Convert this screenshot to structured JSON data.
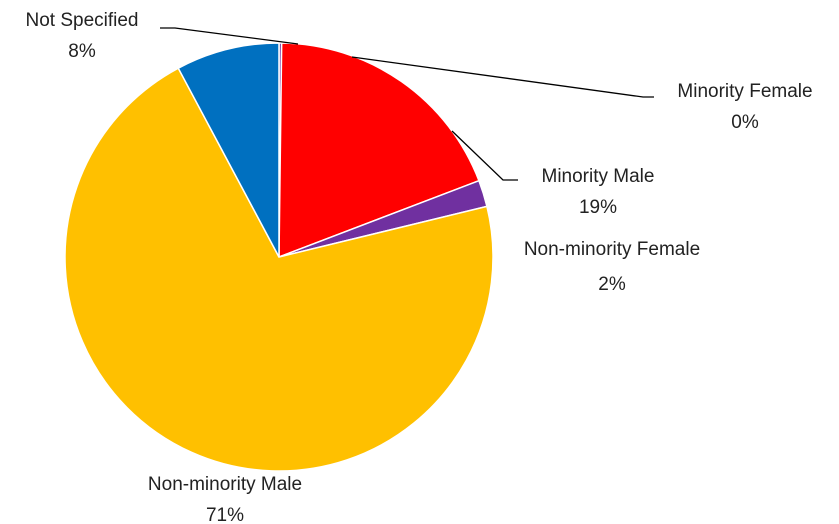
{
  "chart_data": {
    "type": "pie",
    "title": "",
    "start_angle_deg": 0,
    "direction": "clockwise",
    "slices": [
      {
        "label": "Minority Female",
        "value": 0.2,
        "pct_label": "0%",
        "color": "#7030A0"
      },
      {
        "label": "Minority Male",
        "value": 19,
        "pct_label": "19%",
        "color": "#FF0000"
      },
      {
        "label": "Non-minority Female",
        "value": 2,
        "pct_label": "2%",
        "color": "#7030A0"
      },
      {
        "label": "Non-minority Male",
        "value": 71,
        "pct_label": "71%",
        "color": "#FFC000"
      },
      {
        "label": "Not Specified",
        "value": 7.8,
        "pct_label": "8%",
        "color": "#0070C0"
      }
    ]
  }
}
